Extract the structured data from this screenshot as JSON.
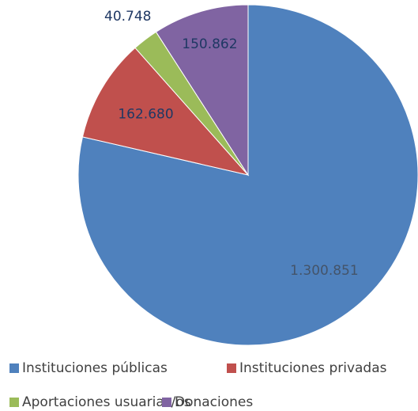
{
  "chart_data": {
    "type": "pie",
    "categories": [
      "Instituciones públicas",
      "Instituciones privadas",
      "Aportaciones usuarias/os",
      "Donaciones"
    ],
    "values": [
      1300851,
      162680,
      40748,
      150862
    ],
    "value_labels": [
      "1.300.851",
      "162.680",
      "40.748",
      "150.862"
    ],
    "colors": [
      "#4f81bd",
      "#c0504d",
      "#9bbb59",
      "#8064a2"
    ],
    "legend": "bottom"
  }
}
